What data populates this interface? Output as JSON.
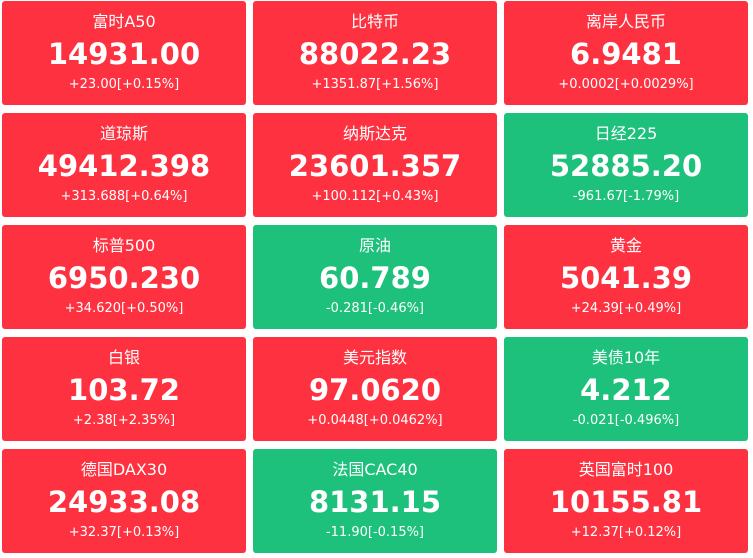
{
  "tiles": [
    {
      "name": "富时A50",
      "price": "14931.00",
      "change": "+23.00[+0.15%]",
      "color": "#fd3140"
    },
    {
      "name": "比特币",
      "price": "88022.23",
      "change": "+1351.87[+1.56%]",
      "color": "#fd3140"
    },
    {
      "name": "离岸人民币",
      "price": "6.9481",
      "change": "+0.0002[+0.0029%]",
      "color": "#fd3140"
    },
    {
      "name": "道琼斯",
      "price": "49412.398",
      "change": "+313.688[+0.64%]",
      "color": "#fd3140"
    },
    {
      "name": "纳斯达克",
      "price": "23601.357",
      "change": "+100.112[+0.43%]",
      "color": "#fd3140"
    },
    {
      "name": "日经225",
      "price": "52885.20",
      "change": "-961.67[-1.79%]",
      "color": "#1dc17b"
    },
    {
      "name": "标普500",
      "price": "6950.230",
      "change": "+34.620[+0.50%]",
      "color": "#fd3140"
    },
    {
      "name": "原油",
      "price": "60.789",
      "change": "-0.281[-0.46%]",
      "color": "#1dc17b"
    },
    {
      "name": "黄金",
      "price": "5041.39",
      "change": "+24.39[+0.49%]",
      "color": "#fd3140"
    },
    {
      "name": "白银",
      "price": "103.72",
      "change": "+2.38[+2.35%]",
      "color": "#fd3140"
    },
    {
      "name": "美元指数",
      "price": "97.0620",
      "change": "+0.0448[+0.0462%]",
      "color": "#fd3140"
    },
    {
      "name": "美债10年",
      "price": "4.212",
      "change": "-0.021[-0.496%]",
      "color": "#1dc17b"
    },
    {
      "name": "德国DAX30",
      "price": "24933.08",
      "change": "+32.37[+0.13%]",
      "color": "#fd3140"
    },
    {
      "name": "法国CAC40",
      "price": "8131.15",
      "change": "-11.90[-0.15%]",
      "color": "#1dc17b"
    },
    {
      "name": "英国富时100",
      "price": "10155.81",
      "change": "+12.37[+0.12%]",
      "color": "#fd3140"
    }
  ]
}
